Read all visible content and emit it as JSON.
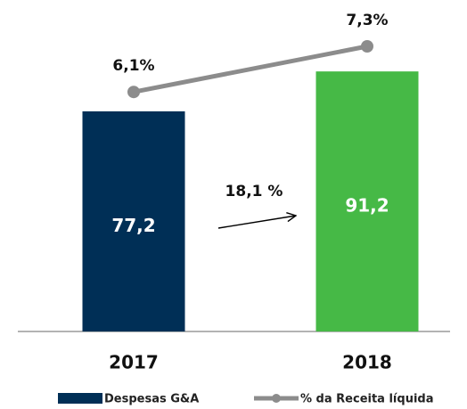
{
  "chart_data": {
    "type": "bar",
    "categories": [
      "2017",
      "2018"
    ],
    "series": [
      {
        "name": "Despesas G&A",
        "type": "bar",
        "color": "#002f56",
        "values": [
          77.2,
          91.2
        ],
        "value_labels": [
          "77,2",
          "91,2"
        ]
      },
      {
        "name": "% da Receita líquida",
        "type": "line",
        "axis": "y2",
        "color": "#8c8c8c",
        "values": [
          6.1,
          7.3
        ],
        "value_labels": [
          "6,1%",
          "7,3%"
        ]
      }
    ],
    "ylim": [
      0,
      100
    ],
    "y2lim": [
      -0.2,
      7.3
    ],
    "annotations": [
      {
        "text": "18,1 %"
      }
    ],
    "legend": "bottom"
  }
}
